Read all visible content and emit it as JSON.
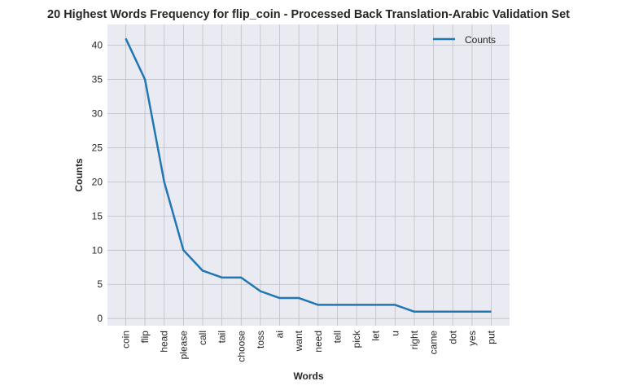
{
  "chart_data": {
    "type": "line",
    "title": "20 Highest Words Frequency for flip_coin - Processed Back Translation-Arabic Validation Set",
    "xlabel": "Words",
    "ylabel": "Counts",
    "categories": [
      "coin",
      "flip",
      "head",
      "please",
      "call",
      "tail",
      "choose",
      "toss",
      "ai",
      "want",
      "need",
      "tell",
      "pick",
      "let",
      "u",
      "right",
      "came",
      "dot",
      "yes",
      "put"
    ],
    "series": [
      {
        "name": "Counts",
        "values": [
          41,
          35,
          20,
          10,
          7,
          6,
          6,
          4,
          3,
          3,
          2,
          2,
          2,
          2,
          2,
          1,
          1,
          1,
          1,
          1
        ],
        "color": "#1f77b4"
      }
    ],
    "ylim": [
      -1.05,
      43.05
    ],
    "yticks": [
      0,
      5,
      10,
      15,
      20,
      25,
      30,
      35,
      40
    ],
    "grid": true,
    "legend_position": "top-right",
    "background": "#eaeaf2",
    "grid_color": "#c0c0c0"
  }
}
